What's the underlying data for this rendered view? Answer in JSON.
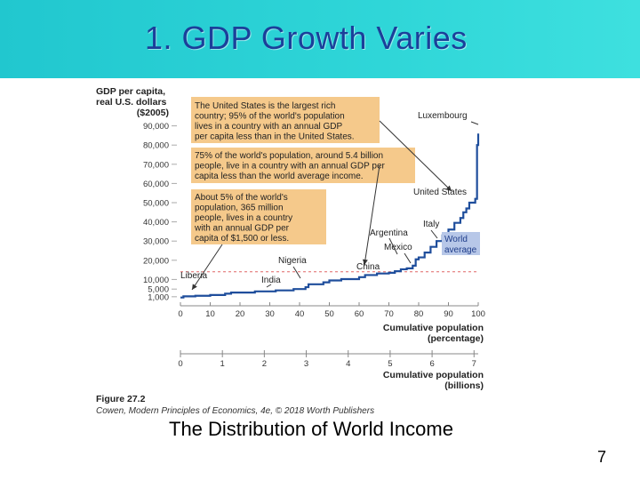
{
  "slide": {
    "title": "1. GDP Growth Varies",
    "caption": "The Distribution of World Income",
    "page_number": "7"
  },
  "figure": {
    "label": "Figure 27.2",
    "credit": "Cowen, Modern Principles of Economics, 4e, © 2018 Worth Publishers"
  },
  "colors": {
    "banner": "#2fd6d8",
    "title_text": "#1b3f9a",
    "line": "#1f4e9c",
    "annotation_box": "#f5c98b",
    "world_average_box": "#b7c7e8",
    "world_average_line": "#e06666"
  },
  "chart_data": {
    "type": "line",
    "ylabel": "GDP per capita, real U.S. dollars ($2005)",
    "xlabel": "Cumulative population (percentage)",
    "x2label": "Cumulative population (billions)",
    "xlim": [
      0,
      100
    ],
    "ylim": [
      0,
      100000
    ],
    "y_ticks": [
      1000,
      5000,
      10000,
      20000,
      30000,
      40000,
      50000,
      60000,
      70000,
      80000,
      90000
    ],
    "y_tick_labels": [
      "1,000",
      "5,000",
      "10,000",
      "20,000",
      "30,000",
      "40,000",
      "50,000",
      "60,000",
      "70,000",
      "80,000",
      "90,000"
    ],
    "x_ticks": [
      0,
      10,
      20,
      30,
      40,
      50,
      60,
      70,
      80,
      90,
      100
    ],
    "x_tick_labels": [
      "0",
      "10",
      "20",
      "30",
      "40",
      "50",
      "60",
      "70",
      "80",
      "90",
      "100"
    ],
    "x2_ticks": [
      0,
      1,
      2,
      3,
      4,
      5,
      6,
      7
    ],
    "x2_tick_labels": [
      "0",
      "1",
      "2",
      "3",
      "4",
      "5",
      "6",
      "7"
    ],
    "x2_max": 7.1,
    "world_average": 14000,
    "grid": false,
    "series": [
      {
        "x": [
          0,
          1,
          5,
          10,
          15,
          17,
          25,
          32,
          38,
          42,
          43,
          48,
          50,
          54,
          60,
          62,
          66,
          70,
          72,
          74,
          76,
          78,
          79,
          80,
          82,
          84,
          86,
          88,
          90,
          92,
          94,
          95,
          96,
          97,
          99,
          99.6,
          100
        ],
        "y": [
          600,
          1200,
          1500,
          1900,
          2600,
          3200,
          3800,
          4300,
          5000,
          6000,
          7500,
          8500,
          9500,
          10200,
          11200,
          12300,
          13100,
          13500,
          14300,
          15300,
          15800,
          17200,
          20500,
          21500,
          24000,
          27000,
          30000,
          33000,
          36000,
          39500,
          42000,
          45000,
          47000,
          50000,
          52000,
          80000,
          86000
        ]
      }
    ],
    "annotations": [
      {
        "text": "The United States is the largest rich country; 95% of the world's population lives in a country with an annual GDP per capita less than in the United States.",
        "lines": [
          "The United States is the largest rich",
          "country; 95% of the world's population",
          "lives in a country with an annual GDP",
          "per capita less than in the United States."
        ]
      },
      {
        "text": "75% of the world's population, around 5.4 billion people, live in a country with an annual GDP per capita less than the world average income.",
        "lines": [
          "75% of the world's population, around 5.4 billion",
          "people, live in a country with an annual GDP per",
          "capita less than the world average income."
        ]
      },
      {
        "text": "About 5% of the world's population, 365 million people, lives in a country with an annual GDP per capita of $1,500 or less.",
        "lines": [
          "About 5% of the world's",
          "population, 365 million",
          "people, lives in a country",
          "with an annual GDP per",
          "capita of $1,500 or less."
        ]
      }
    ],
    "country_labels": [
      {
        "name": "Luxembourg"
      },
      {
        "name": "United States"
      },
      {
        "name": "Italy"
      },
      {
        "name": "Argentina"
      },
      {
        "name": "Mexico"
      },
      {
        "name": "China"
      },
      {
        "name": "Nigeria"
      },
      {
        "name": "India"
      },
      {
        "name": "Liberia"
      },
      {
        "name": "World average",
        "lines": [
          "World",
          "average"
        ]
      }
    ]
  }
}
